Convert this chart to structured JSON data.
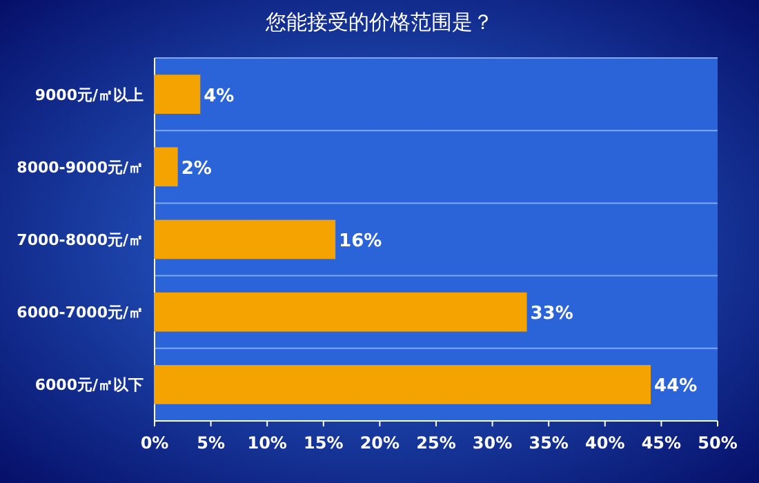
{
  "chart_data": {
    "type": "bar",
    "orientation": "horizontal",
    "title": "您能接受的价格范围是？",
    "categories": [
      "9000元/㎡以上",
      "8000-9000元/㎡",
      "7000-8000元/㎡",
      "6000-7000元/㎡",
      "6000元/㎡以下"
    ],
    "values": [
      4,
      2,
      16,
      33,
      44
    ],
    "value_labels": [
      "4%",
      "2%",
      "16%",
      "33%",
      "44%"
    ],
    "color": "#f5a300",
    "xlim": [
      0,
      50
    ],
    "xticks": [
      {
        "value": 0,
        "label": "0%"
      },
      {
        "value": 5,
        "label": "5%"
      },
      {
        "value": 10,
        "label": "10%"
      },
      {
        "value": 15,
        "label": "15%"
      },
      {
        "value": 20,
        "label": "20%"
      },
      {
        "value": 25,
        "label": "25%"
      },
      {
        "value": 30,
        "label": "30%"
      },
      {
        "value": 35,
        "label": "35%"
      },
      {
        "value": 40,
        "label": "40%"
      },
      {
        "value": 45,
        "label": "45%"
      },
      {
        "value": 50,
        "label": "50%"
      }
    ],
    "grid": "y"
  }
}
